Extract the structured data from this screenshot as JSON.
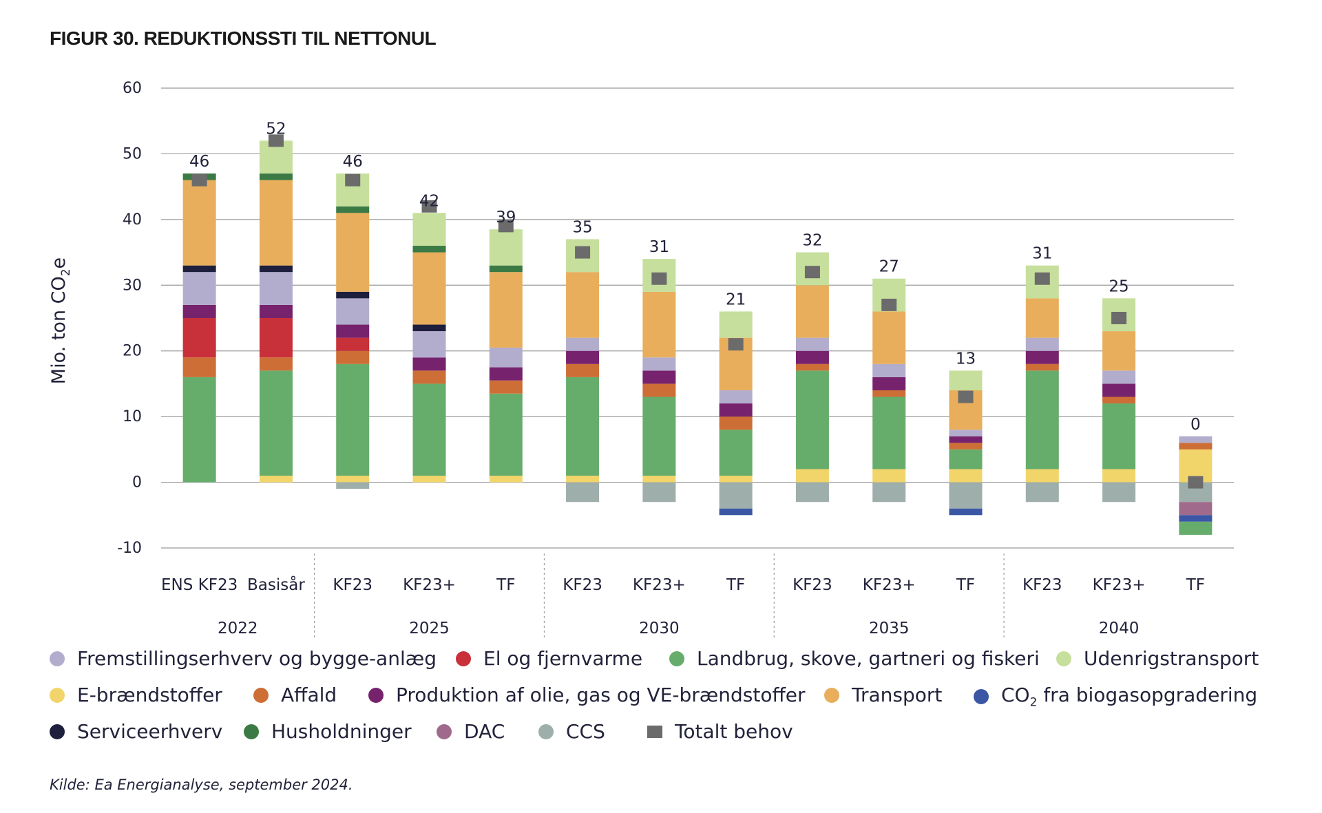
{
  "title": "FIGUR 30. REDUKTIONSSTI TIL NETTONUL",
  "source": "Kilde: Ea Energianalyse, september 2024.",
  "chart_data": {
    "type": "bar",
    "stacked": true,
    "ylabel_main": "Mio. ton CO",
    "ylabel_sub": "2",
    "ylabel_tail": "e",
    "ylim": [
      -10,
      60
    ],
    "yticks": [
      -10,
      0,
      10,
      20,
      30,
      40,
      50,
      60
    ],
    "grid": true,
    "categories": [
      "ENS KF23",
      "Basisår",
      "KF23",
      "KF23+",
      "TF",
      "KF23",
      "KF23+",
      "TF",
      "KF23",
      "KF23+",
      "TF",
      "KF23",
      "KF23+",
      "TF"
    ],
    "groups": [
      {
        "label": "2022",
        "span": 2
      },
      {
        "label": "2025",
        "span": 3
      },
      {
        "label": "2030",
        "span": 3
      },
      {
        "label": "2035",
        "span": 3
      },
      {
        "label": "2040",
        "span": 3
      }
    ],
    "totals_label": [
      "46",
      "52",
      "46",
      "42",
      "39",
      "35",
      "31",
      "21",
      "32",
      "27",
      "13",
      "31",
      "25",
      "0"
    ],
    "totals": [
      46,
      52,
      46,
      42,
      39,
      35,
      31,
      21,
      32,
      27,
      13,
      31,
      25,
      0
    ],
    "positive_order": [
      "E-brændstoffer",
      "Landbrug, skove, gartneri og fiskeri",
      "Affald",
      "El og fjernvarme",
      "Produktion af olie, gas og VE-brændstoffer",
      "Fremstillingserhverv og bygge-anlæg",
      "Serviceerhverv",
      "Transport",
      "Husholdninger",
      "Udenrigstransport"
    ],
    "negative_order": [
      "CCS",
      "DAC",
      "CO2 fra biogasopgradering",
      "Landbrug, skove, gartneri og fiskeri"
    ],
    "series": [
      {
        "name": "Fremstillingserhverv og bygge-anlæg",
        "color": "#b3adcd",
        "values": [
          5,
          5,
          4,
          4,
          3,
          2,
          2,
          2,
          2,
          2,
          1,
          2,
          2,
          1
        ]
      },
      {
        "name": "El og fjernvarme",
        "color": "#c8303a",
        "values": [
          6,
          6,
          2,
          0,
          0,
          0,
          0,
          0,
          0,
          0,
          0,
          0,
          0,
          0
        ]
      },
      {
        "name": "Landbrug, skove, gartneri og fiskeri",
        "color": "#66ad6c",
        "values": [
          16,
          16,
          17,
          14,
          12.5,
          15,
          12,
          7,
          15,
          11,
          3,
          15,
          10,
          -2
        ]
      },
      {
        "name": "Udenrigstransport",
        "color": "#c6df9c",
        "values": [
          0,
          5,
          5,
          5,
          5.5,
          5,
          5,
          4,
          5,
          5,
          3,
          5,
          5,
          0
        ]
      },
      {
        "name": "E-brændstoffer",
        "color": "#f2d56a",
        "values": [
          0,
          1,
          1,
          1,
          1,
          1,
          1,
          1,
          2,
          2,
          2,
          2,
          2,
          5
        ]
      },
      {
        "name": "Affald",
        "color": "#cd6e36",
        "values": [
          3,
          2,
          2,
          2,
          2,
          2,
          2,
          2,
          1,
          1,
          1,
          1,
          1,
          1
        ]
      },
      {
        "name": "Produktion af olie, gas og VE-brændstoffer",
        "color": "#76226d",
        "values": [
          2,
          2,
          2,
          2,
          2,
          2,
          2,
          2,
          2,
          2,
          1,
          2,
          2,
          0
        ]
      },
      {
        "name": "Transport",
        "color": "#e8ae5c",
        "values": [
          13,
          13,
          12,
          11,
          11.5,
          10,
          10,
          8,
          8,
          8,
          6,
          6,
          6,
          0
        ]
      },
      {
        "name": "CO2 fra biogasopgradering",
        "color": "#3a56a5",
        "values": [
          0,
          0,
          0,
          0,
          0,
          0,
          0,
          -1,
          0,
          0,
          -1,
          0,
          0,
          -1
        ]
      },
      {
        "name": "Serviceerhverv",
        "color": "#1d1f3d",
        "values": [
          1,
          1,
          1,
          1,
          0,
          0,
          0,
          0,
          0,
          0,
          0,
          0,
          0,
          0
        ]
      },
      {
        "name": "Husholdninger",
        "color": "#3c7a45",
        "values": [
          1,
          1,
          1,
          1,
          1,
          0,
          0,
          0,
          0,
          0,
          0,
          0,
          0,
          0
        ]
      },
      {
        "name": "DAC",
        "color": "#a06a8c",
        "values": [
          0,
          0,
          0,
          0,
          0,
          0,
          0,
          0,
          0,
          0,
          0,
          0,
          0,
          -2
        ]
      },
      {
        "name": "CCS",
        "color": "#9eaeab",
        "values": [
          0,
          0,
          -1,
          0,
          0,
          -3,
          -3,
          -4,
          -3,
          -3,
          -4,
          -3,
          -3,
          -3
        ]
      }
    ],
    "total_marker": {
      "name": "Totalt behov",
      "color": "#6b6b6b"
    }
  },
  "legend": {
    "rows": [
      [
        {
          "label": "Fremstillingserhverv og bygge-anlæg",
          "color": "#b3adcd",
          "shape": "circle"
        },
        {
          "label": "El og fjernvarme",
          "color": "#c8303a",
          "shape": "circle"
        },
        {
          "label": "Landbrug, skove, gartneri og fiskeri",
          "color": "#66ad6c",
          "shape": "circle"
        },
        {
          "label": "Udenrigstransport",
          "color": "#c6df9c",
          "shape": "circle"
        }
      ],
      [
        {
          "label": "E-brændstoffer",
          "color": "#f2d56a",
          "shape": "circle"
        },
        {
          "label": "Affald",
          "color": "#cd6e36",
          "shape": "circle"
        },
        {
          "label": "Produktion af olie, gas og VE-brændstoffer",
          "color": "#76226d",
          "shape": "circle"
        },
        {
          "label": "Transport",
          "color": "#e8ae5c",
          "shape": "circle"
        },
        {
          "label": "CO",
          "label_sub": "2",
          "label_tail": " fra biogasopgradering",
          "color": "#3a56a5",
          "shape": "circle"
        }
      ],
      [
        {
          "label": "Serviceerhverv",
          "color": "#1d1f3d",
          "shape": "circle"
        },
        {
          "label": "Husholdninger",
          "color": "#3c7a45",
          "shape": "circle"
        },
        {
          "label": "DAC",
          "color": "#a06a8c",
          "shape": "circle"
        },
        {
          "label": "CCS",
          "color": "#9eaeab",
          "shape": "circle"
        },
        {
          "label": "Totalt behov",
          "color": "#6b6b6b",
          "shape": "square"
        }
      ]
    ]
  }
}
